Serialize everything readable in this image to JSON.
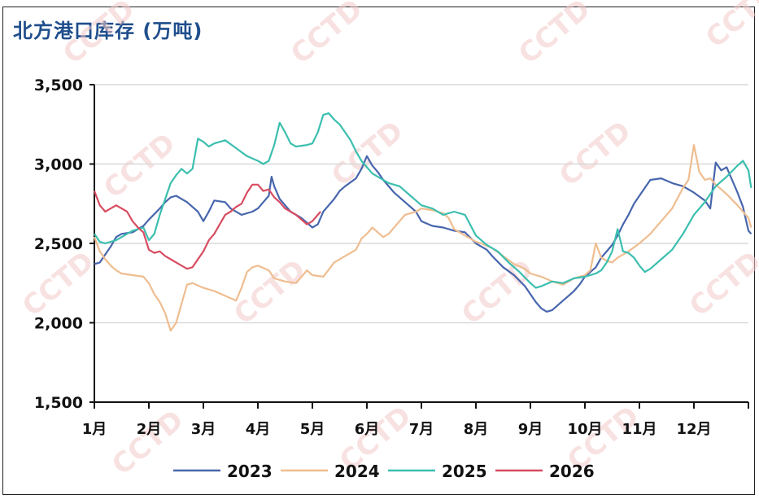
{
  "chart_data": {
    "type": "line",
    "title": "北方港口库存 (万吨)",
    "xlabel": "",
    "ylabel": "",
    "x_ticks": [
      "1月",
      "2月",
      "3月",
      "4月",
      "5月",
      "6月",
      "7月",
      "8月",
      "9月",
      "10月",
      "11月",
      "12月"
    ],
    "y_ticks": [
      "1,500",
      "2,000",
      "2,500",
      "3,000",
      "3,500"
    ],
    "ylim": [
      1500,
      3500
    ],
    "xlim": [
      0,
      12
    ],
    "grid": "horizontal",
    "legend_position": "bottom",
    "watermark": "CCTD",
    "series": [
      {
        "name": "2023",
        "color": "#4866ad",
        "points": [
          [
            0,
            2370
          ],
          [
            0.1,
            2380
          ],
          [
            0.2,
            2430
          ],
          [
            0.3,
            2480
          ],
          [
            0.4,
            2540
          ],
          [
            0.5,
            2560
          ],
          [
            0.7,
            2570
          ],
          [
            0.9,
            2610
          ],
          [
            1.0,
            2650
          ],
          [
            1.2,
            2720
          ],
          [
            1.3,
            2760
          ],
          [
            1.4,
            2790
          ],
          [
            1.5,
            2800
          ],
          [
            1.7,
            2760
          ],
          [
            1.9,
            2700
          ],
          [
            2.0,
            2640
          ],
          [
            2.1,
            2700
          ],
          [
            2.2,
            2770
          ],
          [
            2.4,
            2760
          ],
          [
            2.5,
            2720
          ],
          [
            2.7,
            2680
          ],
          [
            2.9,
            2700
          ],
          [
            3.0,
            2720
          ],
          [
            3.1,
            2760
          ],
          [
            3.2,
            2800
          ],
          [
            3.25,
            2920
          ],
          [
            3.3,
            2860
          ],
          [
            3.4,
            2780
          ],
          [
            3.6,
            2700
          ],
          [
            3.8,
            2660
          ],
          [
            4.0,
            2600
          ],
          [
            4.1,
            2620
          ],
          [
            4.2,
            2700
          ],
          [
            4.4,
            2780
          ],
          [
            4.5,
            2830
          ],
          [
            4.6,
            2860
          ],
          [
            4.8,
            2910
          ],
          [
            4.9,
            2970
          ],
          [
            5.0,
            3050
          ],
          [
            5.1,
            2990
          ],
          [
            5.2,
            2950
          ],
          [
            5.3,
            2900
          ],
          [
            5.5,
            2820
          ],
          [
            5.7,
            2760
          ],
          [
            5.9,
            2700
          ],
          [
            6.0,
            2640
          ],
          [
            6.2,
            2610
          ],
          [
            6.4,
            2600
          ],
          [
            6.6,
            2580
          ],
          [
            6.8,
            2570
          ],
          [
            7.0,
            2500
          ],
          [
            7.1,
            2480
          ],
          [
            7.2,
            2460
          ],
          [
            7.3,
            2420
          ],
          [
            7.5,
            2350
          ],
          [
            7.7,
            2300
          ],
          [
            7.9,
            2230
          ],
          [
            8.0,
            2180
          ],
          [
            8.1,
            2130
          ],
          [
            8.2,
            2090
          ],
          [
            8.3,
            2070
          ],
          [
            8.4,
            2080
          ],
          [
            8.5,
            2110
          ],
          [
            8.6,
            2140
          ],
          [
            8.7,
            2170
          ],
          [
            8.8,
            2200
          ],
          [
            8.9,
            2240
          ],
          [
            9.0,
            2290
          ],
          [
            9.2,
            2350
          ],
          [
            9.3,
            2410
          ],
          [
            9.5,
            2490
          ],
          [
            9.6,
            2550
          ],
          [
            9.7,
            2620
          ],
          [
            9.8,
            2680
          ],
          [
            9.9,
            2750
          ],
          [
            10.0,
            2800
          ],
          [
            10.1,
            2850
          ],
          [
            10.2,
            2900
          ],
          [
            10.4,
            2910
          ],
          [
            10.6,
            2880
          ],
          [
            10.8,
            2860
          ],
          [
            11.0,
            2820
          ],
          [
            11.2,
            2770
          ],
          [
            11.3,
            2720
          ],
          [
            11.4,
            3010
          ],
          [
            11.5,
            2960
          ],
          [
            11.6,
            2980
          ],
          [
            11.7,
            2900
          ],
          [
            11.8,
            2820
          ],
          [
            11.9,
            2730
          ],
          [
            12.0,
            2580
          ],
          [
            12.05,
            2560
          ]
        ]
      },
      {
        "name": "2024",
        "color": "#efbd90",
        "points": [
          [
            0,
            2540
          ],
          [
            0.1,
            2450
          ],
          [
            0.2,
            2400
          ],
          [
            0.3,
            2360
          ],
          [
            0.4,
            2330
          ],
          [
            0.5,
            2310
          ],
          [
            0.7,
            2300
          ],
          [
            0.9,
            2290
          ],
          [
            1.0,
            2250
          ],
          [
            1.1,
            2180
          ],
          [
            1.2,
            2130
          ],
          [
            1.3,
            2060
          ],
          [
            1.4,
            1950
          ],
          [
            1.5,
            2000
          ],
          [
            1.6,
            2120
          ],
          [
            1.7,
            2240
          ],
          [
            1.8,
            2250
          ],
          [
            2.0,
            2220
          ],
          [
            2.2,
            2200
          ],
          [
            2.4,
            2170
          ],
          [
            2.6,
            2140
          ],
          [
            2.7,
            2220
          ],
          [
            2.8,
            2320
          ],
          [
            2.9,
            2350
          ],
          [
            3.0,
            2360
          ],
          [
            3.2,
            2330
          ],
          [
            3.3,
            2280
          ],
          [
            3.5,
            2260
          ],
          [
            3.7,
            2250
          ],
          [
            3.9,
            2330
          ],
          [
            4.0,
            2300
          ],
          [
            4.2,
            2290
          ],
          [
            4.4,
            2380
          ],
          [
            4.6,
            2420
          ],
          [
            4.8,
            2460
          ],
          [
            4.9,
            2530
          ],
          [
            5.0,
            2560
          ],
          [
            5.1,
            2600
          ],
          [
            5.2,
            2570
          ],
          [
            5.3,
            2540
          ],
          [
            5.4,
            2560
          ],
          [
            5.5,
            2600
          ],
          [
            5.7,
            2680
          ],
          [
            5.9,
            2700
          ],
          [
            6.0,
            2720
          ],
          [
            6.2,
            2710
          ],
          [
            6.4,
            2690
          ],
          [
            6.5,
            2660
          ],
          [
            6.6,
            2590
          ],
          [
            6.8,
            2550
          ],
          [
            7.0,
            2510
          ],
          [
            7.1,
            2500
          ],
          [
            7.3,
            2470
          ],
          [
            7.5,
            2420
          ],
          [
            7.7,
            2370
          ],
          [
            7.9,
            2340
          ],
          [
            8.0,
            2310
          ],
          [
            8.2,
            2290
          ],
          [
            8.4,
            2260
          ],
          [
            8.6,
            2240
          ],
          [
            8.7,
            2260
          ],
          [
            8.8,
            2280
          ],
          [
            9.0,
            2300
          ],
          [
            9.1,
            2330
          ],
          [
            9.2,
            2500
          ],
          [
            9.3,
            2410
          ],
          [
            9.4,
            2390
          ],
          [
            9.5,
            2380
          ],
          [
            9.6,
            2410
          ],
          [
            9.8,
            2450
          ],
          [
            10.0,
            2500
          ],
          [
            10.2,
            2560
          ],
          [
            10.4,
            2640
          ],
          [
            10.6,
            2720
          ],
          [
            10.8,
            2850
          ],
          [
            10.9,
            2900
          ],
          [
            11.0,
            3120
          ],
          [
            11.1,
            2950
          ],
          [
            11.2,
            2900
          ],
          [
            11.3,
            2910
          ],
          [
            11.4,
            2870
          ],
          [
            11.6,
            2810
          ],
          [
            11.8,
            2740
          ],
          [
            12.0,
            2660
          ],
          [
            12.05,
            2600
          ]
        ]
      },
      {
        "name": "2025",
        "color": "#3cbfaf",
        "points": [
          [
            0,
            2560
          ],
          [
            0.1,
            2510
          ],
          [
            0.2,
            2500
          ],
          [
            0.3,
            2510
          ],
          [
            0.4,
            2520
          ],
          [
            0.5,
            2540
          ],
          [
            0.6,
            2560
          ],
          [
            0.7,
            2580
          ],
          [
            0.9,
            2600
          ],
          [
            1.0,
            2520
          ],
          [
            1.1,
            2560
          ],
          [
            1.2,
            2680
          ],
          [
            1.3,
            2780
          ],
          [
            1.4,
            2880
          ],
          [
            1.5,
            2930
          ],
          [
            1.6,
            2970
          ],
          [
            1.7,
            2940
          ],
          [
            1.8,
            2970
          ],
          [
            1.9,
            3160
          ],
          [
            2.0,
            3140
          ],
          [
            2.1,
            3110
          ],
          [
            2.2,
            3130
          ],
          [
            2.4,
            3150
          ],
          [
            2.6,
            3100
          ],
          [
            2.8,
            3050
          ],
          [
            3.0,
            3020
          ],
          [
            3.1,
            3000
          ],
          [
            3.2,
            3020
          ],
          [
            3.3,
            3120
          ],
          [
            3.4,
            3260
          ],
          [
            3.5,
            3200
          ],
          [
            3.6,
            3130
          ],
          [
            3.7,
            3110
          ],
          [
            3.9,
            3120
          ],
          [
            4.0,
            3130
          ],
          [
            4.1,
            3200
          ],
          [
            4.2,
            3310
          ],
          [
            4.3,
            3320
          ],
          [
            4.4,
            3280
          ],
          [
            4.5,
            3250
          ],
          [
            4.6,
            3200
          ],
          [
            4.7,
            3150
          ],
          [
            4.8,
            3080
          ],
          [
            4.9,
            3020
          ],
          [
            5.0,
            2980
          ],
          [
            5.1,
            2940
          ],
          [
            5.2,
            2920
          ],
          [
            5.4,
            2880
          ],
          [
            5.6,
            2860
          ],
          [
            5.8,
            2800
          ],
          [
            6.0,
            2740
          ],
          [
            6.2,
            2720
          ],
          [
            6.4,
            2680
          ],
          [
            6.6,
            2700
          ],
          [
            6.8,
            2680
          ],
          [
            7.0,
            2550
          ],
          [
            7.2,
            2490
          ],
          [
            7.4,
            2450
          ],
          [
            7.6,
            2380
          ],
          [
            7.8,
            2320
          ],
          [
            8.0,
            2250
          ],
          [
            8.1,
            2220
          ],
          [
            8.2,
            2230
          ],
          [
            8.4,
            2260
          ],
          [
            8.6,
            2250
          ],
          [
            8.8,
            2280
          ],
          [
            9.0,
            2290
          ],
          [
            9.2,
            2310
          ],
          [
            9.3,
            2330
          ],
          [
            9.4,
            2380
          ],
          [
            9.5,
            2450
          ],
          [
            9.6,
            2590
          ],
          [
            9.7,
            2450
          ],
          [
            9.8,
            2440
          ],
          [
            9.9,
            2410
          ],
          [
            10.0,
            2360
          ],
          [
            10.1,
            2320
          ],
          [
            10.2,
            2340
          ],
          [
            10.4,
            2400
          ],
          [
            10.6,
            2460
          ],
          [
            10.8,
            2560
          ],
          [
            11.0,
            2680
          ],
          [
            11.2,
            2760
          ],
          [
            11.4,
            2860
          ],
          [
            11.6,
            2920
          ],
          [
            11.8,
            2990
          ],
          [
            11.9,
            3020
          ],
          [
            12.0,
            2960
          ],
          [
            12.05,
            2850
          ]
        ]
      },
      {
        "name": "2026",
        "color": "#d74c61",
        "points": [
          [
            0,
            2830
          ],
          [
            0.1,
            2740
          ],
          [
            0.2,
            2700
          ],
          [
            0.3,
            2720
          ],
          [
            0.4,
            2740
          ],
          [
            0.5,
            2720
          ],
          [
            0.6,
            2700
          ],
          [
            0.7,
            2640
          ],
          [
            0.8,
            2600
          ],
          [
            0.9,
            2570
          ],
          [
            1.0,
            2460
          ],
          [
            1.1,
            2440
          ],
          [
            1.2,
            2450
          ],
          [
            1.3,
            2420
          ],
          [
            1.4,
            2400
          ],
          [
            1.5,
            2380
          ],
          [
            1.6,
            2360
          ],
          [
            1.7,
            2340
          ],
          [
            1.8,
            2350
          ],
          [
            1.9,
            2400
          ],
          [
            2.0,
            2450
          ],
          [
            2.1,
            2520
          ],
          [
            2.2,
            2560
          ],
          [
            2.3,
            2620
          ],
          [
            2.4,
            2680
          ],
          [
            2.5,
            2700
          ],
          [
            2.6,
            2730
          ],
          [
            2.7,
            2750
          ],
          [
            2.8,
            2820
          ],
          [
            2.9,
            2870
          ],
          [
            3.0,
            2870
          ],
          [
            3.1,
            2830
          ],
          [
            3.2,
            2840
          ],
          [
            3.3,
            2790
          ],
          [
            3.4,
            2760
          ],
          [
            3.5,
            2720
          ],
          [
            3.6,
            2700
          ],
          [
            3.7,
            2680
          ],
          [
            3.8,
            2650
          ],
          [
            3.9,
            2620
          ],
          [
            4.0,
            2640
          ],
          [
            4.1,
            2680
          ],
          [
            4.15,
            2700
          ]
        ]
      }
    ]
  }
}
